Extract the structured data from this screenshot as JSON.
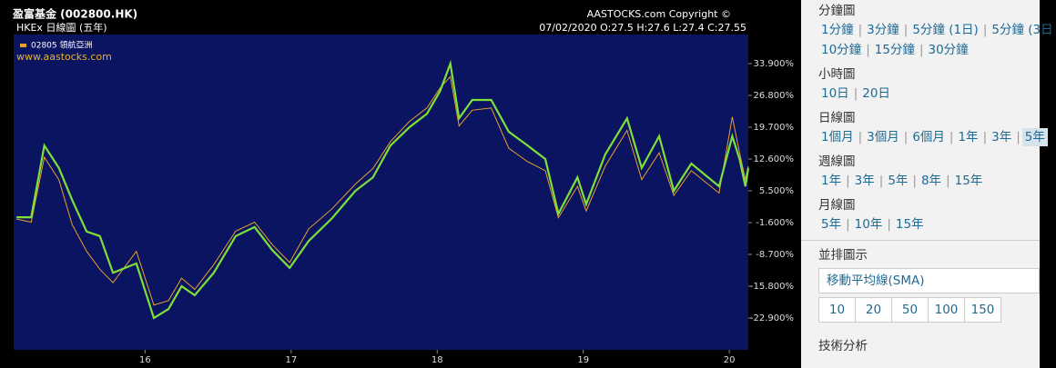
{
  "chart_data": {
    "type": "line",
    "title": "盈富基金 (002800.HK)",
    "subtitle": "HKEx 日線圖 (五年)",
    "info": "07/02/2020  O:27.5  H:27.6  L:27.4  C:27.55",
    "copyright": "AASTOCKS.com Copyright ©",
    "watermark": "www.aastocks.com",
    "x": [
      15.12,
      15.22,
      15.31,
      15.41,
      15.5,
      15.6,
      15.69,
      15.78,
      15.94,
      16.06,
      16.16,
      16.25,
      16.34,
      16.47,
      16.62,
      16.75,
      16.87,
      16.99,
      17.12,
      17.28,
      17.44,
      17.56,
      17.68,
      17.81,
      17.93,
      18.02,
      18.09,
      18.15,
      18.24,
      18.37,
      18.49,
      18.62,
      18.74,
      18.83,
      18.96,
      19.02,
      19.15,
      19.3,
      19.4,
      19.52,
      19.62,
      19.74,
      19.93,
      20.02,
      20.07,
      20.11,
      20.13
    ],
    "series": [
      {
        "color": "#7ee03a",
        "values": [
          -0.4,
          -0.4,
          15.6,
          10.6,
          3.5,
          -3.6,
          -4.6,
          -12.8,
          -10.7,
          -22.9,
          -20.9,
          -15.8,
          -17.8,
          -12.8,
          -4.6,
          -2.6,
          -7.7,
          -11.7,
          -5.7,
          -0.6,
          5.5,
          8.5,
          15.6,
          19.7,
          22.7,
          27.8,
          33.9,
          21.7,
          25.8,
          25.8,
          18.7,
          15.6,
          12.6,
          0.4,
          8.5,
          2.5,
          13.6,
          21.7,
          10.6,
          17.7,
          5.5,
          11.6,
          6.5,
          17.7,
          12.6,
          6.5,
          10.6
        ]
      },
      {
        "name": "02805 領航亞洲",
        "color": "#e8a030",
        "values": [
          -0.8,
          -1.5,
          13.0,
          8.0,
          -2.0,
          -8.0,
          -12.0,
          -15.0,
          -8.0,
          -20.0,
          -19.0,
          -14.0,
          -16.5,
          -11.0,
          -3.5,
          -1.5,
          -6.5,
          -10.5,
          -3.0,
          1.5,
          7.0,
          10.5,
          16.5,
          21.0,
          24.0,
          28.5,
          31.0,
          20.0,
          23.5,
          24.0,
          15.0,
          12.0,
          10.0,
          -0.5,
          6.5,
          1.0,
          11.0,
          19.0,
          8.0,
          14.0,
          4.5,
          10.0,
          5.0,
          22.0,
          14.0,
          8.0,
          11.0
        ]
      }
    ],
    "xlim": [
      15.1,
      20.13
    ],
    "xticks": [
      16,
      17,
      18,
      19,
      20
    ],
    "ylim": [
      -30,
      40.4
    ],
    "yticks": [
      {
        "value": 33.9,
        "label": "33.900%"
      },
      {
        "value": 26.8,
        "label": "26.800%"
      },
      {
        "value": 19.7,
        "label": "19.700%"
      },
      {
        "value": 12.6,
        "label": "12.600%"
      },
      {
        "value": 5.5,
        "label": "5.500%"
      },
      {
        "value": -1.6,
        "label": "-1.600%"
      },
      {
        "value": -8.7,
        "label": "-8.700%"
      },
      {
        "value": -15.8,
        "label": "-15.800%"
      },
      {
        "value": -22.9,
        "label": "-22.900%"
      }
    ]
  },
  "panel": {
    "sections": [
      {
        "title": "分鐘圖",
        "rows": [
          [
            "1分鐘",
            "3分鐘",
            "5分鐘 (1日)",
            "5分鐘 (3日"
          ],
          [
            "10分鐘",
            "15分鐘",
            "30分鐘"
          ]
        ]
      },
      {
        "title": "小時圖",
        "rows": [
          [
            "10日",
            "20日"
          ]
        ]
      },
      {
        "title": "日線圖",
        "rows": [
          [
            "1個月",
            "3個月",
            "6個月",
            "1年",
            "3年",
            "5年"
          ]
        ]
      },
      {
        "title": "週線圖",
        "rows": [
          [
            "1年",
            "3年",
            "5年",
            "8年",
            "15年"
          ]
        ]
      },
      {
        "title": "月線圖",
        "rows": [
          [
            "5年",
            "10年",
            "15年"
          ]
        ]
      }
    ],
    "overlay_title": "並排圖示",
    "overlay_select": "移動平均線(SMA)",
    "overlay_periods": [
      "10",
      "20",
      "50",
      "100",
      "150"
    ],
    "technical_title": "技術分析"
  }
}
